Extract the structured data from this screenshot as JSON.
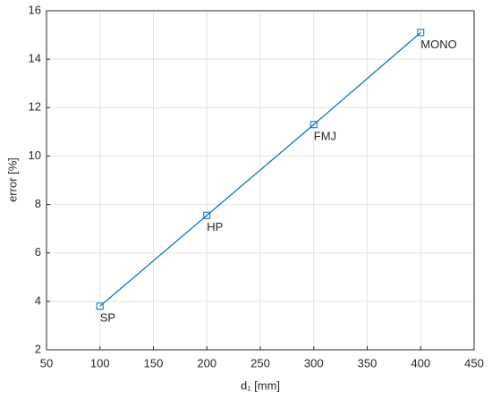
{
  "chart_data": {
    "type": "line",
    "xlabel": "d₁ [mm]",
    "ylabel": "error [%]",
    "x": [
      100,
      200,
      300,
      400
    ],
    "series": [
      {
        "color": "#0072bd",
        "values": [
          3.8,
          7.55,
          11.3,
          15.1
        ],
        "point_labels": [
          "SP",
          "HP",
          "FMJ",
          "MONO"
        ]
      }
    ],
    "xlim": [
      50,
      450
    ],
    "xticks": [
      50,
      100,
      150,
      200,
      250,
      300,
      350,
      400,
      450
    ],
    "ylim": [
      2,
      16
    ],
    "yticks": [
      2,
      4,
      6,
      8,
      10,
      12,
      14,
      16
    ],
    "grid": true,
    "marker": "square"
  }
}
